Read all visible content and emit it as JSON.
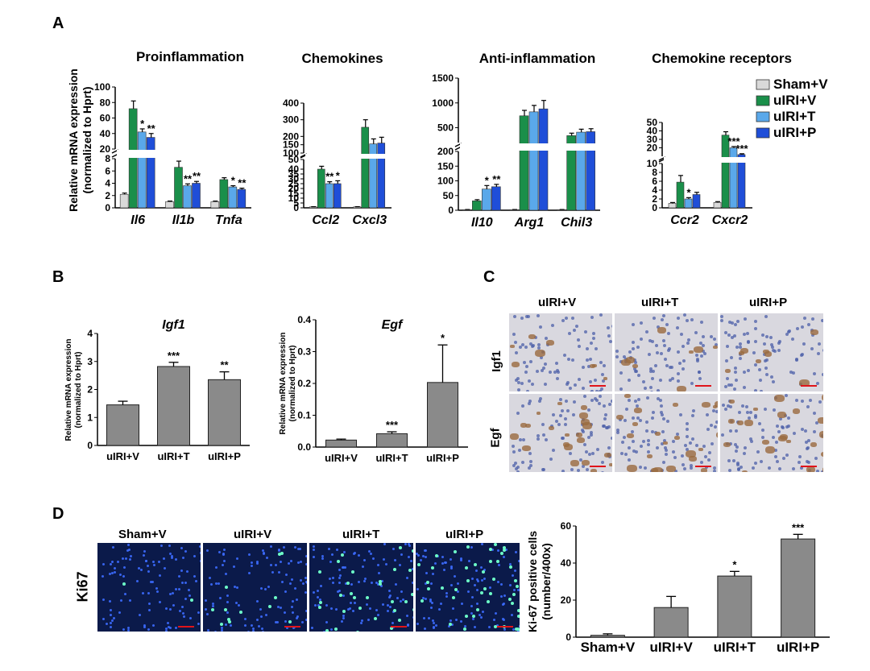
{
  "panels": {
    "A": "A",
    "B": "B",
    "C": "C",
    "D": "D"
  },
  "legend": [
    {
      "label": "Sham+V",
      "color": "#d9d9d9"
    },
    {
      "label": "uIRI+V",
      "color": "#1a8f4a"
    },
    {
      "label": "uIRI+T",
      "color": "#5aa8ea"
    },
    {
      "label": "uIRI+P",
      "color": "#1f4ed8"
    }
  ],
  "chart_data": [
    {
      "type": "bar",
      "panel": "A",
      "title": "Proinflammation",
      "ylabel": "Relative mRNA expression (normalized to Hprt)",
      "categories": [
        "Il6",
        "Il1b",
        "Tnfa"
      ],
      "axis_break": {
        "lower": [
          0,
          8
        ],
        "upper": [
          20,
          100
        ]
      },
      "yticks_lower": [
        "0",
        "2",
        "4",
        "6",
        "8"
      ],
      "yticks_upper": [
        "20",
        "40",
        "60",
        "80",
        "100"
      ],
      "series": [
        {
          "name": "Sham+V",
          "values": [
            2.2,
            1.0,
            1.0
          ],
          "errors": [
            0.2,
            0.1,
            0.1
          ]
        },
        {
          "name": "uIRI+V",
          "values": [
            72,
            6.6,
            4.6
          ],
          "errors": [
            10,
            1.0,
            0.3
          ]
        },
        {
          "name": "uIRI+T",
          "values": [
            42,
            3.6,
            3.4
          ],
          "errors": [
            4,
            0.3,
            0.2
          ]
        },
        {
          "name": "uIRI+P",
          "values": [
            35,
            4.0,
            3.0
          ],
          "errors": [
            5,
            0.3,
            0.2
          ]
        }
      ],
      "significance": [
        [
          "",
          "",
          "*",
          "**"
        ],
        [
          "",
          "",
          "**",
          "**"
        ],
        [
          "",
          "",
          "*",
          "**"
        ]
      ]
    },
    {
      "type": "bar",
      "panel": "A",
      "title": "Chemokines",
      "categories": [
        "Ccl2",
        "Cxcl3"
      ],
      "axis_break": {
        "lower": [
          0,
          50
        ],
        "upper": [
          100,
          400
        ]
      },
      "yticks_lower": [
        "0",
        "5",
        "10",
        "15",
        "20",
        "25",
        "30",
        "35",
        "40",
        "50"
      ],
      "yticks_upper": [
        "100",
        "150",
        "200",
        "300",
        "400"
      ],
      "series": [
        {
          "name": "Sham+V",
          "values": [
            1,
            1
          ],
          "errors": [
            0.2,
            0.2
          ]
        },
        {
          "name": "uIRI+V",
          "values": [
            40,
            255
          ],
          "errors": [
            3,
            45
          ]
        },
        {
          "name": "uIRI+T",
          "values": [
            25,
            155
          ],
          "errors": [
            2,
            30
          ]
        },
        {
          "name": "uIRI+P",
          "values": [
            25,
            160
          ],
          "errors": [
            3,
            35
          ]
        }
      ],
      "significance": [
        [
          "",
          "",
          "**",
          "*"
        ],
        [
          "",
          "",
          "",
          ""
        ]
      ]
    },
    {
      "type": "bar",
      "panel": "A",
      "title": "Anti-inflammation",
      "categories": [
        "Il10",
        "Arg1",
        "Chil3"
      ],
      "axis_break": {
        "lower": [
          0,
          200
        ],
        "upper": [
          200,
          1500
        ]
      },
      "yticks_lower": [
        "0",
        "50",
        "100",
        "150",
        "200"
      ],
      "yticks_upper": [
        "500",
        "1000",
        "1500"
      ],
      "series": [
        {
          "name": "Sham+V",
          "values": [
            2,
            2,
            2
          ],
          "errors": [
            0.5,
            0.5,
            0.5
          ]
        },
        {
          "name": "uIRI+V",
          "values": [
            32,
            740,
            340
          ],
          "errors": [
            4,
            110,
            50
          ]
        },
        {
          "name": "uIRI+T",
          "values": [
            72,
            820,
            410
          ],
          "errors": [
            12,
            130,
            60
          ]
        },
        {
          "name": "uIRI+P",
          "values": [
            80,
            880,
            420
          ],
          "errors": [
            8,
            170,
            60
          ]
        }
      ],
      "significance": [
        [
          "",
          "",
          "*",
          "**"
        ],
        [
          "",
          "",
          "",
          ""
        ],
        [
          "",
          "",
          "",
          ""
        ]
      ]
    },
    {
      "type": "bar",
      "panel": "A",
      "title": "Chemokine receptors",
      "categories": [
        "Ccr2",
        "Cxcr2"
      ],
      "axis_break": {
        "lower": [
          0,
          10
        ],
        "upper": [
          10,
          50
        ]
      },
      "yticks_lower": [
        "0",
        "2",
        "4",
        "6",
        "8",
        "10"
      ],
      "yticks_upper": [
        "20",
        "30",
        "40",
        "50"
      ],
      "series": [
        {
          "name": "Sham+V",
          "values": [
            1,
            1.2
          ],
          "errors": [
            0.2,
            0.2
          ]
        },
        {
          "name": "uIRI+V",
          "values": [
            5.8,
            35
          ],
          "errors": [
            1.5,
            4
          ]
        },
        {
          "name": "uIRI+T",
          "values": [
            2.0,
            20
          ],
          "errors": [
            0.3,
            1.5
          ]
        },
        {
          "name": "uIRI+P",
          "values": [
            3.0,
            12
          ],
          "errors": [
            0.5,
            1
          ]
        }
      ],
      "significance": [
        [
          "",
          "",
          "*",
          ""
        ],
        [
          "",
          "",
          "***",
          "***"
        ]
      ]
    },
    {
      "type": "bar",
      "panel": "B",
      "title": "Igf1",
      "ylabel": "Relative mRNA expression (normalized to Hprt)",
      "categories": [
        "uIRI+V",
        "uIRI+T",
        "uIRI+P"
      ],
      "values": [
        1.45,
        2.82,
        2.35
      ],
      "errors": [
        0.13,
        0.15,
        0.28
      ],
      "significance": [
        "",
        "***",
        "**"
      ],
      "ylim": [
        0,
        4
      ],
      "yticks": [
        "0",
        "1",
        "2",
        "3",
        "4"
      ]
    },
    {
      "type": "bar",
      "panel": "B",
      "title": "Egf",
      "ylabel": "Relative mRNA expression (normalized to Hprt)",
      "categories": [
        "uIRI+V",
        "uIRI+T",
        "uIRI+P"
      ],
      "values": [
        0.022,
        0.042,
        0.203
      ],
      "errors": [
        0.003,
        0.006,
        0.118
      ],
      "significance": [
        "",
        "***",
        "*"
      ],
      "ylim": [
        0,
        0.4
      ],
      "yticks": [
        "0.0",
        "0.1",
        "0.2",
        "0.3",
        "0.4"
      ]
    },
    {
      "type": "bar",
      "panel": "D",
      "ylabel": "Ki-67 positive cells (number/400x)",
      "categories": [
        "Sham+V",
        "uIRI+V",
        "uIRI+T",
        "uIRI+P"
      ],
      "values": [
        1,
        16,
        33,
        53
      ],
      "errors": [
        0.8,
        6,
        2.5,
        2.5
      ],
      "significance": [
        "",
        "",
        "*",
        "***"
      ],
      "ylim": [
        0,
        60
      ],
      "yticks": [
        "0",
        "20",
        "40",
        "60"
      ]
    }
  ],
  "panel_c": {
    "columns": [
      "uIRI+V",
      "uIRI+T",
      "uIRI+P"
    ],
    "rows": [
      "Igf1",
      "Egf"
    ]
  },
  "panel_d_images": {
    "columns": [
      "Sham+V",
      "uIRI+V",
      "uIRI+T",
      "uIRI+P"
    ],
    "row": "Ki67"
  }
}
